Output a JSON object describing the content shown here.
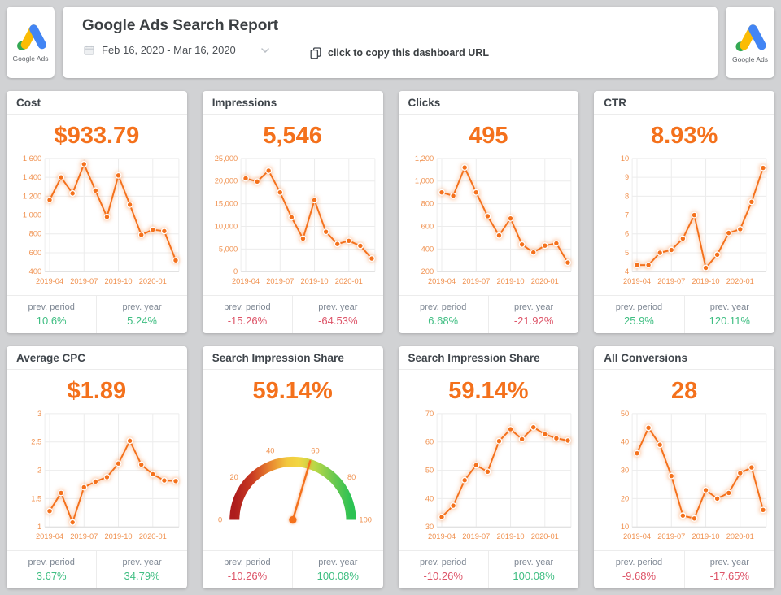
{
  "header": {
    "title": "Google Ads Search Report",
    "date_range": "Feb 16, 2020 - Mar 16, 2020",
    "copy_url_label": "click to copy this dashboard URL",
    "logo_caption": "Google Ads"
  },
  "labels": {
    "prev_period": "prev. period",
    "prev_year": "prev. year"
  },
  "colors": {
    "accent": "#f4711c",
    "positive": "#3fbe82",
    "negative": "#dd5468",
    "tick": "#f0914f",
    "grid": "#ececec",
    "axis": "#dcdcdc",
    "google_blue": "#4285f4",
    "google_yellow": "#fbbc04",
    "google_green": "#34a853",
    "gauge_stops": [
      [
        0,
        "#ad1c1c"
      ],
      [
        0.15,
        "#c93a23"
      ],
      [
        0.3,
        "#e8832f"
      ],
      [
        0.45,
        "#f2c83e"
      ],
      [
        0.55,
        "#f2d643"
      ],
      [
        0.7,
        "#b5d748"
      ],
      [
        0.85,
        "#6cc94f"
      ],
      [
        1,
        "#2bc253"
      ]
    ]
  },
  "chart_data": [
    {
      "type": "line",
      "title": "Cost",
      "value": "$933.79",
      "x": [
        "2019-04",
        "2019-05",
        "2019-06",
        "2019-07",
        "2019-08",
        "2019-09",
        "2019-10",
        "2019-11",
        "2019-12",
        "2020-01",
        "2020-02",
        "2020-03"
      ],
      "values": [
        1160,
        1400,
        1230,
        1540,
        1260,
        980,
        1420,
        1110,
        790,
        845,
        830,
        520
      ],
      "yticks": [
        1600,
        1400,
        1200,
        1000,
        800,
        600,
        400
      ],
      "ylim": [
        400,
        1600
      ],
      "xticks": [
        "2019-04",
        "2019-07",
        "2019-10",
        "2020-01"
      ],
      "prev_period": "10.6%",
      "prev_year": "5.24%"
    },
    {
      "type": "line",
      "title": "Impressions",
      "value": "5,546",
      "x": [
        "2019-04",
        "2019-05",
        "2019-06",
        "2019-07",
        "2019-08",
        "2019-09",
        "2019-10",
        "2019-11",
        "2019-12",
        "2020-01",
        "2020-02",
        "2020-03"
      ],
      "values": [
        20600,
        19900,
        22300,
        17500,
        12000,
        7300,
        15800,
        8800,
        6100,
        6800,
        5700,
        2900
      ],
      "yticks": [
        25000,
        20000,
        15000,
        10000,
        5000,
        0
      ],
      "ylim": [
        0,
        25000
      ],
      "xticks": [
        "2019-04",
        "2019-07",
        "2019-10",
        "2020-01"
      ],
      "prev_period": "-15.26%",
      "prev_year": "-64.53%"
    },
    {
      "type": "line",
      "title": "Clicks",
      "value": "495",
      "x": [
        "2019-04",
        "2019-05",
        "2019-06",
        "2019-07",
        "2019-08",
        "2019-09",
        "2019-10",
        "2019-11",
        "2019-12",
        "2020-01",
        "2020-02",
        "2020-03"
      ],
      "values": [
        900,
        870,
        1120,
        900,
        690,
        520,
        670,
        440,
        370,
        430,
        450,
        280
      ],
      "yticks": [
        1200,
        1000,
        800,
        600,
        400,
        200
      ],
      "ylim": [
        200,
        1200
      ],
      "xticks": [
        "2019-04",
        "2019-07",
        "2019-10",
        "2020-01"
      ],
      "prev_period": "6.68%",
      "prev_year": "-21.92%"
    },
    {
      "type": "line",
      "title": "CTR",
      "value": "8.93%",
      "x": [
        "2019-04",
        "2019-05",
        "2019-06",
        "2019-07",
        "2019-08",
        "2019-09",
        "2019-10",
        "2019-11",
        "2019-12",
        "2020-01",
        "2020-02",
        "2020-03"
      ],
      "values": [
        4.35,
        4.35,
        5.0,
        5.15,
        5.75,
        7.0,
        4.2,
        4.9,
        6.05,
        6.25,
        7.7,
        9.5
      ],
      "yticks": [
        10,
        9,
        8,
        7,
        6,
        5,
        4
      ],
      "ylim": [
        4,
        10
      ],
      "xticks": [
        "2019-04",
        "2019-07",
        "2019-10",
        "2020-01"
      ],
      "prev_period": "25.9%",
      "prev_year": "120.11%"
    },
    {
      "type": "line",
      "title": "Average CPC",
      "value": "$1.89",
      "x": [
        "2019-04",
        "2019-05",
        "2019-06",
        "2019-07",
        "2019-08",
        "2019-09",
        "2019-10",
        "2019-11",
        "2019-12",
        "2020-01",
        "2020-02",
        "2020-03"
      ],
      "values": [
        1.28,
        1.6,
        1.08,
        1.7,
        1.8,
        1.88,
        2.12,
        2.52,
        2.1,
        1.93,
        1.82,
        1.81
      ],
      "yticks": [
        3,
        2.5,
        2,
        1.5,
        1
      ],
      "ylim": [
        1,
        3
      ],
      "xticks": [
        "2019-04",
        "2019-07",
        "2019-10",
        "2020-01"
      ],
      "prev_period": "3.67%",
      "prev_year": "34.79%"
    },
    {
      "type": "gauge",
      "title": "Search Impression Share",
      "value": "59.14%",
      "gauge_value": 59.14,
      "ticks": [
        0,
        20,
        40,
        60,
        80,
        100
      ],
      "range": [
        0,
        100
      ],
      "prev_period": "-10.26%",
      "prev_year": "100.08%"
    },
    {
      "type": "line",
      "title": "Search Impression Share",
      "value": "59.14%",
      "x": [
        "2019-04",
        "2019-05",
        "2019-06",
        "2019-07",
        "2019-08",
        "2019-09",
        "2019-10",
        "2019-11",
        "2019-12",
        "2020-01",
        "2020-02",
        "2020-03"
      ],
      "values": [
        33.5,
        37.5,
        46.5,
        51.8,
        49.5,
        60.3,
        64.5,
        61.0,
        65.2,
        62.7,
        61.3,
        60.5
      ],
      "yticks": [
        70,
        60,
        50,
        40,
        30
      ],
      "ylim": [
        30,
        70
      ],
      "xticks": [
        "2019-04",
        "2019-07",
        "2019-10",
        "2020-01"
      ],
      "prev_period": "-10.26%",
      "prev_year": "100.08%"
    },
    {
      "type": "line",
      "title": "All Conversions",
      "value": "28",
      "x": [
        "2019-04",
        "2019-05",
        "2019-06",
        "2019-07",
        "2019-08",
        "2019-09",
        "2019-10",
        "2019-11",
        "2019-12",
        "2020-01",
        "2020-02",
        "2020-03"
      ],
      "values": [
        36,
        45,
        39,
        28,
        14,
        13,
        23,
        20,
        22,
        29,
        31,
        16
      ],
      "yticks": [
        50,
        40,
        30,
        20,
        10
      ],
      "ylim": [
        10,
        50
      ],
      "xticks": [
        "2019-04",
        "2019-07",
        "2019-10",
        "2020-01"
      ],
      "prev_period": "-9.68%",
      "prev_year": "-17.65%"
    }
  ]
}
